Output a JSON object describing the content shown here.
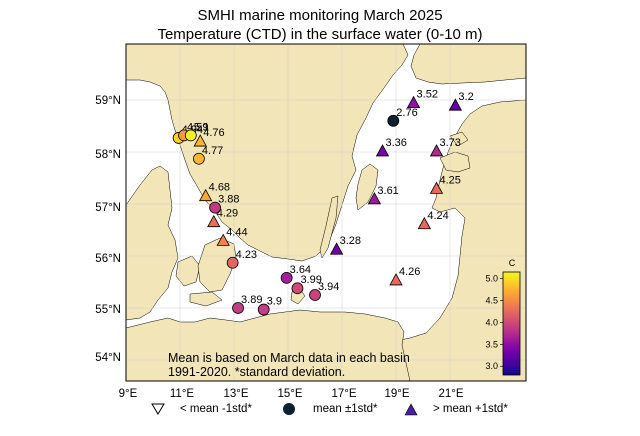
{
  "title_line1": "SMHI marine monitoring March 2025",
  "title_line2": "Temperature (CTD) in the surface water (0-10 m)",
  "lat_labels": [
    "59°N",
    "58°N",
    "57°N",
    "56°N",
    "55°N",
    "54°N"
  ],
  "lon_labels": [
    "9°E",
    "11°E",
    "13°E",
    "15°E",
    "17°E",
    "19°E",
    "21°E"
  ],
  "footnote_line1": "Mean is based on March data in each basin",
  "footnote_line2": "1991-2020. *standard deviation.",
  "legend": {
    "below": "< mean -1std*",
    "mean": "mean ±1std*",
    "above": "> mean +1std*"
  },
  "colorbar": {
    "label": "C",
    "ticks": [
      "5.0",
      "4.5",
      "4.0",
      "3.5",
      "3.0"
    ],
    "min": 2.8,
    "max": 5.15,
    "colors": [
      "#0d0887",
      "#41049d",
      "#6a00a8",
      "#8f0da4",
      "#b12a90",
      "#cc4778",
      "#e16462",
      "#f2844b",
      "#fca636",
      "#fcce25",
      "#f0f921"
    ]
  },
  "colors": {
    "land": "#f2e6b8",
    "sea": "#ffffff",
    "mean_marker": "#0c2230",
    "grid": "#d0d0d0"
  },
  "stations": [
    {
      "value": "4.94",
      "lon": 10.95,
      "lat": 58.27,
      "status": "mean"
    },
    {
      "value": "4.59",
      "lon": 11.15,
      "lat": 58.32,
      "status": "mean"
    },
    {
      "value": "5.1",
      "lon": 11.4,
      "lat": 58.32,
      "status": "mean"
    },
    {
      "value": "4.76",
      "lon": 11.75,
      "lat": 58.21,
      "status": "above"
    },
    {
      "value": "4.77",
      "lon": 11.7,
      "lat": 57.87,
      "status": "mean"
    },
    {
      "value": "4.68",
      "lon": 11.95,
      "lat": 57.16,
      "status": "above"
    },
    {
      "value": "3.88",
      "lon": 12.3,
      "lat": 56.93,
      "status": "mean"
    },
    {
      "value": "4.29",
      "lon": 12.25,
      "lat": 56.66,
      "status": "above"
    },
    {
      "value": "4.44",
      "lon": 12.6,
      "lat": 56.3,
      "status": "above"
    },
    {
      "value": "4.23",
      "lon": 12.95,
      "lat": 55.87,
      "status": "mean"
    },
    {
      "value": "3.89",
      "lon": 13.15,
      "lat": 55.0,
      "status": "mean"
    },
    {
      "value": "3.9",
      "lon": 14.1,
      "lat": 54.97,
      "status": "mean"
    },
    {
      "value": "3.64",
      "lon": 14.95,
      "lat": 55.58,
      "status": "mean"
    },
    {
      "value": "3.99",
      "lon": 15.35,
      "lat": 55.38,
      "status": "mean"
    },
    {
      "value": "3.94",
      "lon": 16.0,
      "lat": 55.25,
      "status": "mean"
    },
    {
      "value": "3.28",
      "lon": 16.8,
      "lat": 56.13,
      "status": "above"
    },
    {
      "value": "4.26",
      "lon": 19.0,
      "lat": 55.54,
      "status": "above"
    },
    {
      "value": "3.61",
      "lon": 18.2,
      "lat": 57.1,
      "status": "above"
    },
    {
      "value": "4.24",
      "lon": 20.05,
      "lat": 56.62,
      "status": "above"
    },
    {
      "value": "4.25",
      "lon": 20.5,
      "lat": 57.3,
      "status": "above"
    },
    {
      "value": "3.36",
      "lon": 18.5,
      "lat": 58.02,
      "status": "above"
    },
    {
      "value": "3.73",
      "lon": 20.5,
      "lat": 58.02,
      "status": "above"
    },
    {
      "value": "2.76",
      "lon": 18.9,
      "lat": 58.6,
      "status": "mean"
    },
    {
      "value": "3.52",
      "lon": 19.65,
      "lat": 58.95,
      "status": "above"
    },
    {
      "value": "3.2",
      "lon": 21.2,
      "lat": 58.9,
      "status": "above"
    }
  ]
}
